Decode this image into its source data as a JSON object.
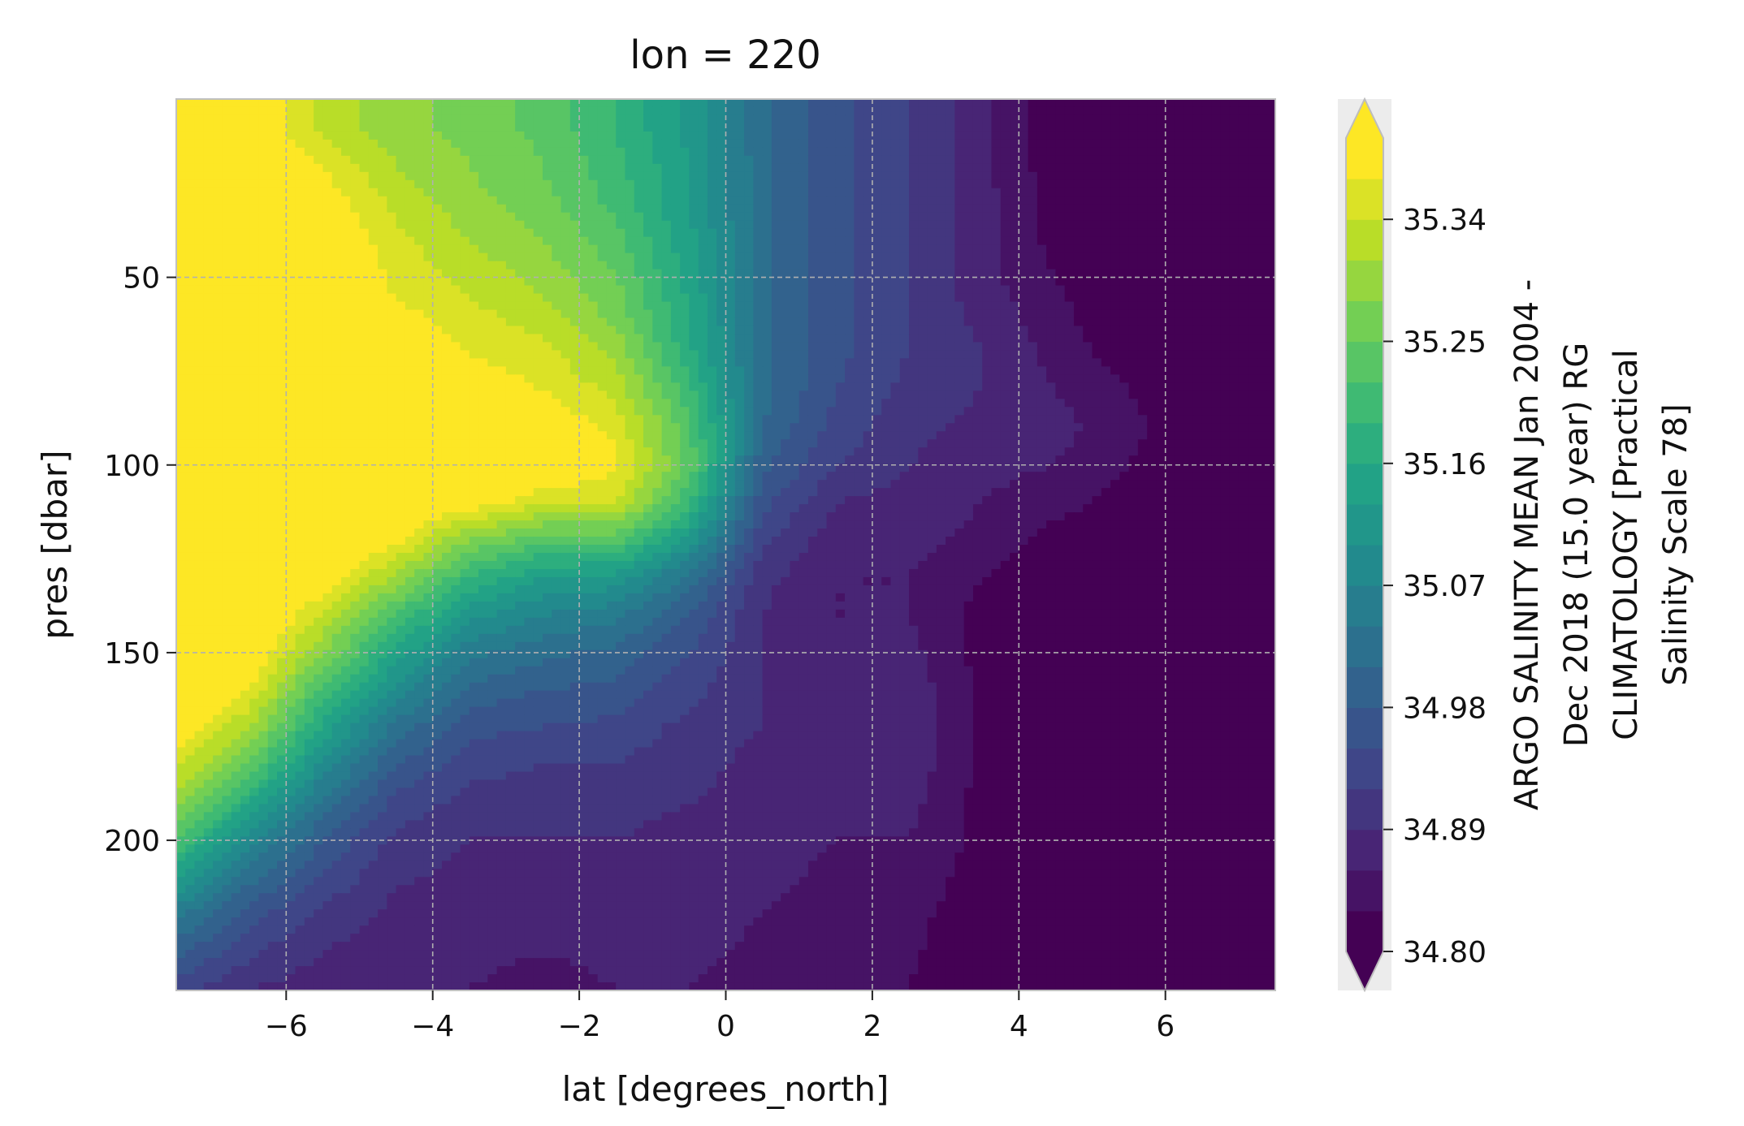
{
  "chart_data": {
    "type": "heatmap",
    "title": "lon = 220",
    "xlabel": "lat [degrees_north]",
    "ylabel": "pres [dbar]",
    "xlim": [
      -7.5,
      7.5
    ],
    "ylim": [
      240,
      2.5
    ],
    "x_ticks": [
      -6,
      -4,
      -2,
      0,
      2,
      4,
      6
    ],
    "x_tick_labels": [
      "−6",
      "−4",
      "−2",
      "0",
      "2",
      "4",
      "6"
    ],
    "y_ticks": [
      50,
      100,
      150,
      200
    ],
    "y_tick_labels": [
      "50",
      "100",
      "150",
      "200"
    ],
    "grid": true,
    "colormap": "viridis",
    "colorbar": {
      "label_lines": [
        "ARGO SALINITY MEAN Jan 2004 -",
        "Dec 2018 (15.0 year) RG",
        "CLIMATOLOGY [Practical",
        "Salinity Scale 78]"
      ],
      "range": [
        34.8,
        35.4
      ],
      "ticks": [
        34.8,
        34.89,
        34.98,
        35.07,
        35.16,
        35.25,
        35.34
      ],
      "tick_labels": [
        "34.80",
        "34.89",
        "34.98",
        "35.07",
        "35.16",
        "35.25",
        "35.34"
      ],
      "levels": 20,
      "extend": "both"
    },
    "lat": [
      -7.5,
      -6.5,
      -5.5,
      -4.5,
      -3.5,
      -2.5,
      -1.5,
      -0.5,
      0.5,
      1.5,
      2.5,
      3.5,
      4.5,
      5.5,
      6.5,
      7.5
    ],
    "pres": [
      2.5,
      10,
      20,
      30,
      40,
      50,
      60,
      70,
      80,
      90,
      100,
      110,
      120,
      130,
      140,
      150,
      160,
      170,
      180,
      190,
      200,
      220,
      240
    ],
    "salinity": [
      [
        35.43,
        35.41,
        35.33,
        35.29,
        35.27,
        35.24,
        35.19,
        35.12,
        35.02,
        34.96,
        34.92,
        34.87,
        34.81,
        34.79,
        34.79,
        34.79
      ],
      [
        35.43,
        35.41,
        35.33,
        35.29,
        35.27,
        35.24,
        35.19,
        35.12,
        35.02,
        34.96,
        34.92,
        34.87,
        34.81,
        34.79,
        34.79,
        34.79
      ],
      [
        35.43,
        35.41,
        35.37,
        35.31,
        35.28,
        35.25,
        35.2,
        35.13,
        35.02,
        34.96,
        34.92,
        34.87,
        34.81,
        34.79,
        34.79,
        34.79
      ],
      [
        35.43,
        35.42,
        35.39,
        35.33,
        35.29,
        35.26,
        35.21,
        35.13,
        35.02,
        34.96,
        34.92,
        34.87,
        34.82,
        34.79,
        34.79,
        34.79
      ],
      [
        35.43,
        35.43,
        35.41,
        35.35,
        35.31,
        35.28,
        35.23,
        35.14,
        35.02,
        34.96,
        34.92,
        34.87,
        34.82,
        34.79,
        34.79,
        34.79
      ],
      [
        35.43,
        35.43,
        35.42,
        35.36,
        35.33,
        35.3,
        35.25,
        35.15,
        35.02,
        34.96,
        34.92,
        34.87,
        34.83,
        34.79,
        34.79,
        34.79
      ],
      [
        35.43,
        35.43,
        35.42,
        35.38,
        35.35,
        35.32,
        35.27,
        35.16,
        35.02,
        34.96,
        34.92,
        34.88,
        34.84,
        34.8,
        34.79,
        34.79
      ],
      [
        35.43,
        35.43,
        35.43,
        35.4,
        35.37,
        35.35,
        35.3,
        35.17,
        35.02,
        34.96,
        34.92,
        34.89,
        34.85,
        34.81,
        34.79,
        34.79
      ],
      [
        35.43,
        35.43,
        35.43,
        35.41,
        35.39,
        35.37,
        35.33,
        35.2,
        35.02,
        34.95,
        34.91,
        34.89,
        34.86,
        34.83,
        34.79,
        34.79
      ],
      [
        35.43,
        35.43,
        35.43,
        35.42,
        35.41,
        35.4,
        35.36,
        35.23,
        35.01,
        34.94,
        34.9,
        34.88,
        34.87,
        34.84,
        34.8,
        34.79
      ],
      [
        35.43,
        35.43,
        35.43,
        35.43,
        35.42,
        35.41,
        35.38,
        35.24,
        34.99,
        34.92,
        34.89,
        34.87,
        34.86,
        34.83,
        34.8,
        34.79
      ],
      [
        35.43,
        35.43,
        35.43,
        35.42,
        35.39,
        35.35,
        35.34,
        35.2,
        34.96,
        34.89,
        34.88,
        34.86,
        34.84,
        34.82,
        34.79,
        34.79
      ],
      [
        35.43,
        35.43,
        35.43,
        35.38,
        35.28,
        35.23,
        35.23,
        35.12,
        34.93,
        34.87,
        34.87,
        34.85,
        34.82,
        34.8,
        34.79,
        34.79
      ],
      [
        35.43,
        35.43,
        35.4,
        35.3,
        35.19,
        35.13,
        35.12,
        35.03,
        34.9,
        34.86,
        34.86,
        34.83,
        34.8,
        34.79,
        34.79,
        34.79
      ],
      [
        35.43,
        35.43,
        35.34,
        35.22,
        35.11,
        35.07,
        35.05,
        34.98,
        34.89,
        34.86,
        34.86,
        34.82,
        34.79,
        34.79,
        34.79,
        34.79
      ],
      [
        35.43,
        35.41,
        35.28,
        35.15,
        35.05,
        35.02,
        35.0,
        34.95,
        34.89,
        34.86,
        34.87,
        34.82,
        34.79,
        34.79,
        34.79,
        34.79
      ],
      [
        35.43,
        35.37,
        35.21,
        35.09,
        35.0,
        34.98,
        34.97,
        34.93,
        34.89,
        34.87,
        34.88,
        34.82,
        34.79,
        34.79,
        34.79,
        34.79
      ],
      [
        35.4,
        35.31,
        35.15,
        35.03,
        34.96,
        34.95,
        34.94,
        34.91,
        34.89,
        34.87,
        34.89,
        34.82,
        34.79,
        34.79,
        34.79,
        34.79
      ],
      [
        35.35,
        35.24,
        35.09,
        34.98,
        34.93,
        34.92,
        34.92,
        34.9,
        34.88,
        34.87,
        34.88,
        34.82,
        34.79,
        34.79,
        34.79,
        34.79
      ],
      [
        35.3,
        35.16,
        35.03,
        34.94,
        34.91,
        34.9,
        34.9,
        34.89,
        34.88,
        34.87,
        34.87,
        34.82,
        34.79,
        34.79,
        34.79,
        34.79
      ],
      [
        35.22,
        35.08,
        34.98,
        34.91,
        34.89,
        34.89,
        34.89,
        34.88,
        34.87,
        34.86,
        34.86,
        34.82,
        34.79,
        34.79,
        34.79,
        34.79
      ],
      [
        35.05,
        34.96,
        34.91,
        34.88,
        34.87,
        34.87,
        34.87,
        34.87,
        34.86,
        34.85,
        34.84,
        34.81,
        34.79,
        34.79,
        34.79,
        34.79
      ],
      [
        34.93,
        34.89,
        34.87,
        34.86,
        34.86,
        34.85,
        34.86,
        34.86,
        34.85,
        34.84,
        34.83,
        34.8,
        34.79,
        34.79,
        34.79,
        34.79
      ]
    ]
  }
}
